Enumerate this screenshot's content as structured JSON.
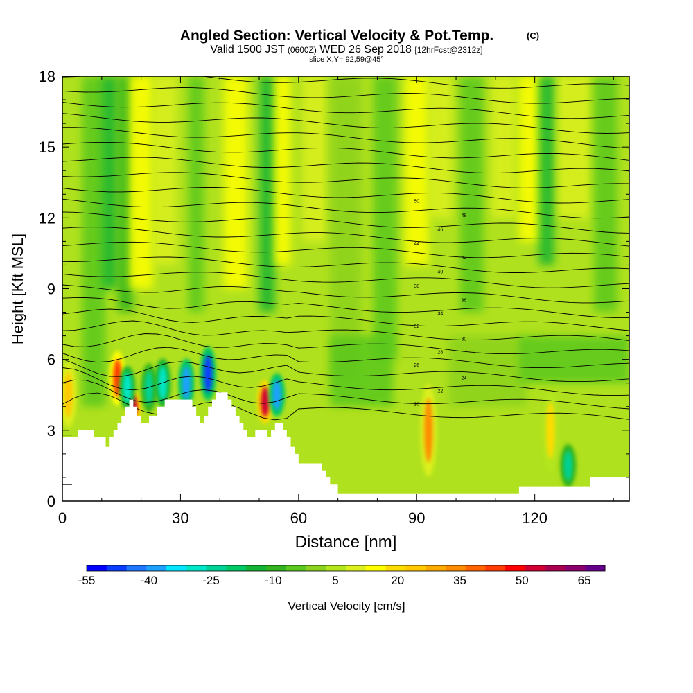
{
  "chart_data": {
    "type": "heatmap",
    "title": "Angled Section: Vertical Velocity & Pot.Temp.",
    "title_units": "(C)",
    "subtitle": {
      "valid_prefix": "Valid 1500 JST",
      "utc": "(0600Z)",
      "date": "WED 26 Sep 2018",
      "forecast": "[12hrFcst@2312z]"
    },
    "slice_label": "slice X,Y= 92,59@45°",
    "xlabel": "Distance [nm]",
    "ylabel": "Height [Kft MSL]",
    "xlim": [
      0,
      144
    ],
    "ylim": [
      0,
      18
    ],
    "x_ticks": [
      "0",
      "30",
      "60",
      "90",
      "120"
    ],
    "x_tick_values": [
      0,
      30,
      60,
      90,
      120
    ],
    "y_ticks": [
      "0",
      "3",
      "6",
      "9",
      "12",
      "15",
      "18"
    ],
    "y_tick_values": [
      0,
      3,
      6,
      9,
      12,
      15,
      18
    ],
    "colorbar": {
      "label": "Vertical Velocity [cm/s]",
      "tick_labels": [
        "-55",
        "-40",
        "-25",
        "-10",
        "5",
        "20",
        "35",
        "50",
        "65"
      ],
      "tick_values": [
        -55,
        -40,
        -25,
        -10,
        5,
        20,
        35,
        50,
        65
      ],
      "levels": [
        -55,
        -50,
        -45,
        -40,
        -35,
        -30,
        -25,
        -20,
        -15,
        -10,
        -5,
        0,
        5,
        10,
        15,
        20,
        25,
        30,
        35,
        40,
        45,
        50,
        55,
        60,
        65,
        70
      ],
      "colors": [
        "#0000ff",
        "#0a3cff",
        "#1e78ff",
        "#1ea0ff",
        "#00e6ff",
        "#00e6c8",
        "#00d296",
        "#00c864",
        "#14b432",
        "#32b41e",
        "#5ac81e",
        "#8cd21e",
        "#b4e61e",
        "#dcf01e",
        "#ffff00",
        "#ffdc00",
        "#ffc800",
        "#ffaa00",
        "#ff8c00",
        "#ff6400",
        "#ff3c00",
        "#ff0000",
        "#d20032",
        "#aa0050",
        "#8c006e",
        "#64008c"
      ]
    },
    "terrain": {
      "x": [
        0,
        2,
        4,
        6,
        8,
        10,
        11,
        12,
        13,
        14,
        15,
        16,
        17,
        18,
        19,
        20,
        21,
        22,
        24,
        26,
        28,
        30,
        32,
        33,
        34,
        35,
        36,
        37,
        38,
        39,
        40,
        41,
        42,
        43,
        44,
        45,
        46,
        47,
        48,
        49,
        50,
        51,
        52,
        53,
        54,
        55,
        56,
        57,
        58,
        59,
        60,
        61,
        62,
        63,
        64,
        65,
        66,
        67,
        68,
        70,
        80,
        90,
        100,
        110,
        113,
        116,
        120,
        125,
        130,
        132,
        133,
        134,
        140,
        144
      ],
      "height": [
        2.7,
        2.7,
        3.0,
        3.0,
        2.7,
        2.7,
        2.3,
        2.7,
        3.0,
        3.3,
        3.6,
        4.0,
        4.3,
        4.0,
        3.6,
        3.3,
        3.3,
        3.6,
        4.0,
        4.3,
        4.3,
        4.3,
        4.3,
        4.0,
        3.6,
        3.3,
        3.6,
        4.0,
        4.3,
        4.6,
        4.6,
        4.6,
        4.3,
        4.0,
        3.6,
        3.3,
        3.0,
        2.7,
        2.7,
        3.0,
        3.0,
        3.0,
        2.7,
        3.0,
        3.3,
        3.3,
        3.0,
        2.7,
        2.3,
        2.0,
        1.6,
        1.6,
        1.6,
        1.6,
        1.6,
        1.6,
        1.3,
        1.0,
        0.7,
        0.3,
        0.3,
        0.3,
        0.3,
        0.3,
        0.3,
        0.6,
        0.6,
        0.6,
        0.6,
        0.6,
        0.6,
        1.0,
        1.0,
        1.3
      ]
    },
    "theta_isentropes_C": {
      "levels": [
        20,
        22,
        24,
        26,
        28,
        30,
        32,
        34,
        36,
        38,
        40,
        42,
        44,
        46,
        48,
        50,
        52,
        54,
        56,
        58,
        60,
        62,
        64,
        66,
        68,
        70
      ],
      "labels_shown": [
        "20",
        "22",
        "24",
        "26",
        "28",
        "30",
        "32",
        "34",
        "36",
        "38",
        "40",
        "42",
        "44",
        "46",
        "48",
        "50"
      ]
    },
    "w_field_features": [
      {
        "x": 1.5,
        "z_center": 4.5,
        "z_half": 1.2,
        "w": 25
      },
      {
        "x": 14,
        "z_center": 5.2,
        "z_half": 1.0,
        "w": 45
      },
      {
        "x": 18,
        "z_center": 4.0,
        "z_half": 0.6,
        "w": 55
      },
      {
        "x": 16.5,
        "z_center": 4.8,
        "z_half": 0.8,
        "w": -30
      },
      {
        "x": 22,
        "z_center": 4.8,
        "z_half": 0.9,
        "w": -25
      },
      {
        "x": 25.5,
        "z_center": 5.0,
        "z_half": 0.9,
        "w": -30
      },
      {
        "x": 31.5,
        "z_center": 5.0,
        "z_half": 0.9,
        "w": -40
      },
      {
        "x": 37,
        "z_center": 5.4,
        "z_half": 1.0,
        "w": -50
      },
      {
        "x": 51.5,
        "z_center": 4.2,
        "z_half": 0.8,
        "w": 55
      },
      {
        "x": 54.5,
        "z_center": 4.5,
        "z_half": 0.8,
        "w": -40
      },
      {
        "x": 93,
        "z_center": 3.0,
        "z_half": 1.7,
        "w": 35
      },
      {
        "x": 124,
        "z_center": 3.0,
        "z_half": 1.5,
        "w": 20
      },
      {
        "x": 128.5,
        "z_center": 1.5,
        "z_half": 0.8,
        "w": -25
      }
    ]
  }
}
